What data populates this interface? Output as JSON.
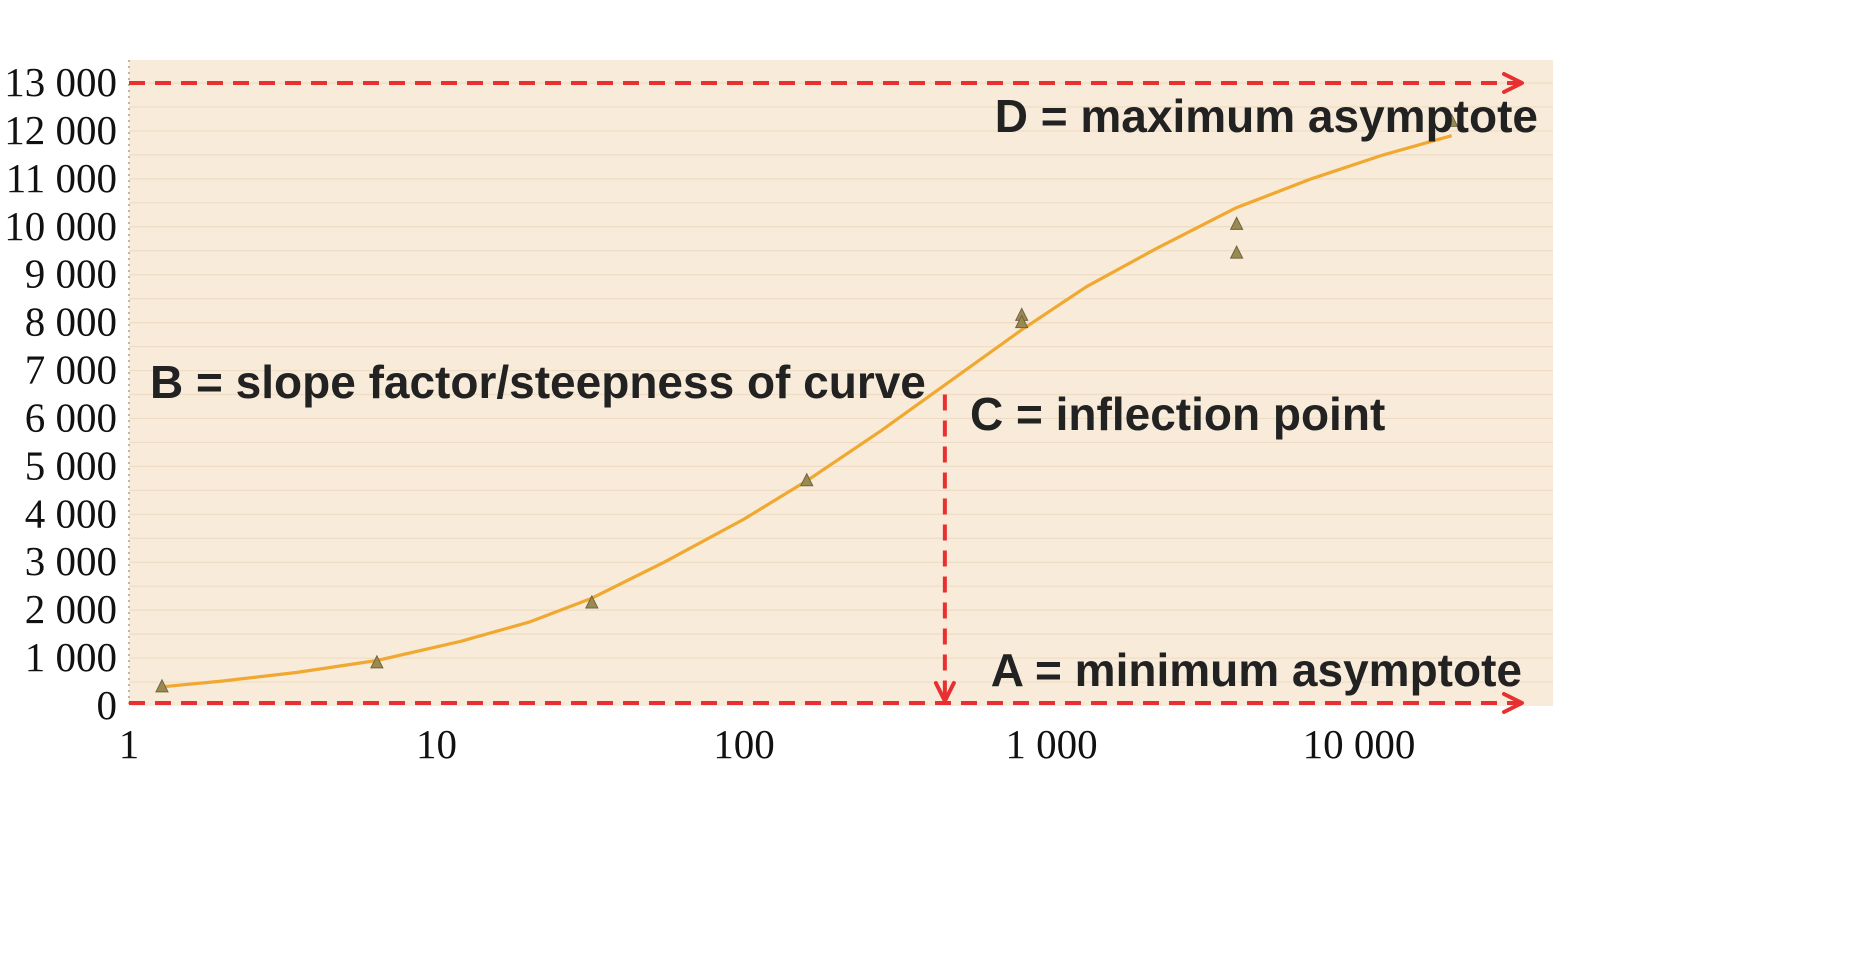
{
  "chart_data": {
    "type": "line",
    "title": "",
    "xlabel": "",
    "ylabel": "",
    "x_scale": "log",
    "xlim": [
      1,
      30000
    ],
    "ylim": [
      0,
      13000
    ],
    "grid": true,
    "y_ticks": [
      {
        "value": 0,
        "label": "0"
      },
      {
        "value": 1000,
        "label": "1 000"
      },
      {
        "value": 2000,
        "label": "2 000"
      },
      {
        "value": 3000,
        "label": "3 000"
      },
      {
        "value": 4000,
        "label": "4 000"
      },
      {
        "value": 5000,
        "label": "5 000"
      },
      {
        "value": 6000,
        "label": "6 000"
      },
      {
        "value": 7000,
        "label": "7 000"
      },
      {
        "value": 8000,
        "label": "8 000"
      },
      {
        "value": 9000,
        "label": "9 000"
      },
      {
        "value": 10000,
        "label": "10 000"
      },
      {
        "value": 11000,
        "label": "11 000"
      },
      {
        "value": 12000,
        "label": "12 000"
      },
      {
        "value": 13000,
        "label": "13 000"
      }
    ],
    "x_ticks": [
      {
        "value": 1,
        "label": "1"
      },
      {
        "value": 10,
        "label": "10"
      },
      {
        "value": 100,
        "label": "100"
      },
      {
        "value": 1000,
        "label": "1 000"
      },
      {
        "value": 10000,
        "label": "10 000"
      }
    ],
    "series": [
      {
        "type": "scatter",
        "marker": "triangle",
        "color": "#9a8a52",
        "points": [
          {
            "x": 1.28,
            "y": 400
          },
          {
            "x": 6.4,
            "y": 900
          },
          {
            "x": 32,
            "y": 2150
          },
          {
            "x": 160,
            "y": 4700
          },
          {
            "x": 800,
            "y": 8150
          },
          {
            "x": 800,
            "y": 8000
          },
          {
            "x": 4000,
            "y": 10050
          },
          {
            "x": 4000,
            "y": 9450
          },
          {
            "x": 20000,
            "y": 12200
          }
        ]
      },
      {
        "type": "line",
        "color": "#f0a830",
        "points": [
          {
            "x": 1.28,
            "y": 400
          },
          {
            "x": 2,
            "y": 520
          },
          {
            "x": 3.5,
            "y": 700
          },
          {
            "x": 6.4,
            "y": 950
          },
          {
            "x": 12,
            "y": 1350
          },
          {
            "x": 20,
            "y": 1750
          },
          {
            "x": 32,
            "y": 2250
          },
          {
            "x": 55,
            "y": 3000
          },
          {
            "x": 100,
            "y": 3900
          },
          {
            "x": 160,
            "y": 4700
          },
          {
            "x": 280,
            "y": 5750
          },
          {
            "x": 450,
            "y": 6700
          },
          {
            "x": 800,
            "y": 7850
          },
          {
            "x": 1300,
            "y": 8750
          },
          {
            "x": 2200,
            "y": 9550
          },
          {
            "x": 4000,
            "y": 10400
          },
          {
            "x": 7000,
            "y": 11000
          },
          {
            "x": 12000,
            "y": 11500
          },
          {
            "x": 20000,
            "y": 11900
          }
        ]
      }
    ],
    "annotations": [
      {
        "id": "max",
        "text": "D = maximum asymptote"
      },
      {
        "id": "slope",
        "text": "B = slope factor/steepness of curve"
      },
      {
        "id": "inflection",
        "text": "C = inflection point",
        "x": 450
      },
      {
        "id": "min",
        "text": "A = minimum asymptote"
      }
    ],
    "colors": {
      "plot_background": "#f8ebd9",
      "gridline": "#eedcc4",
      "dashed_arrow": "#e83030",
      "curve": "#f0a830",
      "marker": "#9a8a52"
    }
  }
}
